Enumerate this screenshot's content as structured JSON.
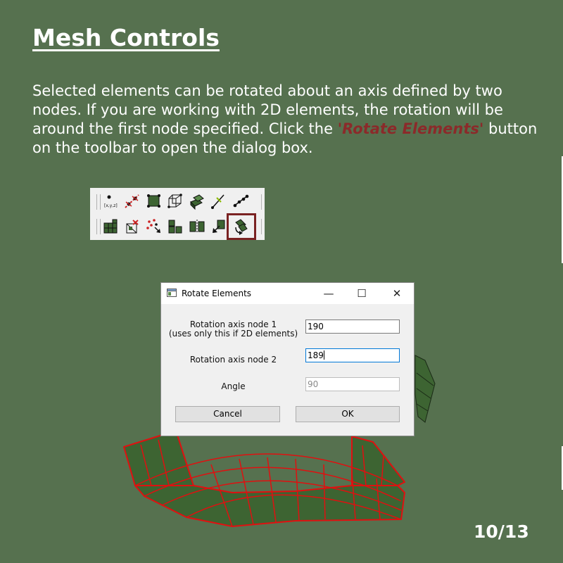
{
  "slide": {
    "title": "Mesh Controls",
    "paragraph_before": "Selected elements can be rotated about an axis defined by two nodes. If you are working with 2D elements, the rotation will be around the first node specified. Click the ",
    "emphasis": "'Rotate Elements'",
    "paragraph_after": " button on the toolbar to open the dialog box.",
    "page_number": "10/13",
    "background_color": "#56714f",
    "emphasis_color": "#8b2a2a"
  },
  "toolbar": {
    "row1_icons": [
      "node-coordinates-icon",
      "node-arrows-icon",
      "element-icon",
      "element-cube-icon",
      "element-stack-icon",
      "line-angle-icon",
      "node-chain-icon"
    ],
    "row2_icons": [
      "mesh-block-icon",
      "element-delete-icon",
      "node-scatter-icon",
      "element-split-icon",
      "element-mirror-icon",
      "element-move-icon",
      "rotate-elements-icon"
    ],
    "highlighted_tool": "rotate-elements-icon"
  },
  "dialog": {
    "title": "Rotate Elements",
    "minimize_symbol": "—",
    "maximize_symbol": "☐",
    "close_symbol": "✕",
    "fields": [
      {
        "label_line1": "Rotation axis node 1",
        "label_line2": "(uses only this if 2D elements)",
        "value": "190",
        "state": "normal"
      },
      {
        "label_line1": "Rotation axis node 2",
        "label_line2": "",
        "value": "189",
        "state": "focused"
      },
      {
        "label_line1": "Angle",
        "label_line2": "",
        "value": "90",
        "state": "disabled"
      }
    ],
    "cancel_label": "Cancel",
    "ok_label": "OK"
  }
}
